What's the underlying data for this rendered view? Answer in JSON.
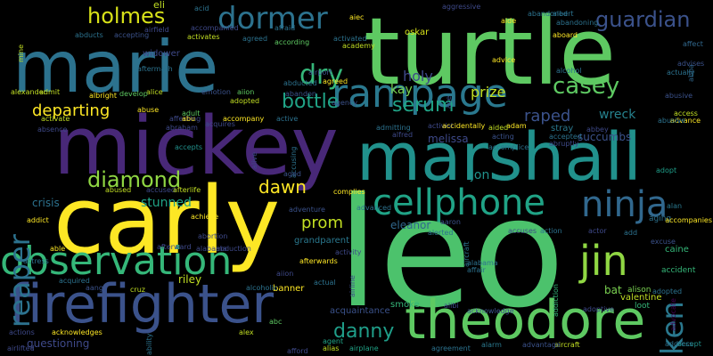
{
  "words": [
    {
      "text": "leo",
      "color": "#4cc26c"
    },
    {
      "text": "turtle",
      "color": "#5ec962"
    },
    {
      "text": "carly",
      "color": "#fde725"
    },
    {
      "text": "mickey",
      "color": "#482878"
    },
    {
      "text": "marshall",
      "color": "#21918c"
    },
    {
      "text": "marie",
      "color": "#2c728e"
    },
    {
      "text": "firefighter",
      "color": "#3b528b"
    },
    {
      "text": "theodore",
      "color": "#5ec962"
    },
    {
      "text": "observation",
      "color": "#35b779"
    },
    {
      "text": "rampage",
      "color": "#2a788e"
    },
    {
      "text": "cellphone",
      "color": "#20a386"
    },
    {
      "text": "ninja",
      "color": "#31688e"
    },
    {
      "text": "jin",
      "color": "#90d743"
    },
    {
      "text": "ken",
      "color": "#2a788e"
    },
    {
      "text": "dormer",
      "color": "#2c728e"
    },
    {
      "text": "guardian",
      "color": "#3b528b"
    },
    {
      "text": "holmes",
      "color": "#d8e219"
    },
    {
      "text": "casey",
      "color": "#5ec962"
    },
    {
      "text": "diamond",
      "color": "#90d743"
    },
    {
      "text": "dry",
      "color": "#35b779"
    },
    {
      "text": "serum",
      "color": "#20a386"
    },
    {
      "text": "reaper",
      "color": "#2c728e"
    },
    {
      "text": "bottle",
      "color": "#20a386"
    },
    {
      "text": "danny",
      "color": "#1f9e89"
    },
    {
      "text": "dawn",
      "color": "#fde725"
    },
    {
      "text": "prom",
      "color": "#c2df23"
    },
    {
      "text": "departing",
      "color": "#fde725"
    },
    {
      "text": "raped",
      "color": "#3b528b"
    },
    {
      "text": "holy",
      "color": "#3e4989"
    },
    {
      "text": "prize",
      "color": "#c2df23"
    },
    {
      "text": "kay",
      "color": "#7ad151"
    },
    {
      "text": "jon",
      "color": "#21918c"
    },
    {
      "text": "stunned",
      "color": "#20a386"
    },
    {
      "text": "questioning",
      "color": "#3e4989"
    },
    {
      "text": "crisis",
      "color": "#2c728e"
    },
    {
      "text": "oskar",
      "color": "#d8e219"
    },
    {
      "text": "wreck",
      "color": "#26828e"
    },
    {
      "text": "succumbs",
      "color": "#3b528b"
    },
    {
      "text": "eleanor",
      "color": "#31688e"
    },
    {
      "text": "melissa",
      "color": "#3e4989"
    },
    {
      "text": "eli",
      "color": "#c2df23"
    },
    {
      "text": "stray",
      "color": "#2a788e"
    },
    {
      "text": "grandparent",
      "color": "#2a788e"
    },
    {
      "text": "riley",
      "color": "#c2df23"
    },
    {
      "text": "bat",
      "color": "#7ad151"
    },
    {
      "text": "valentine",
      "color": "#c2df23"
    },
    {
      "text": "caine",
      "color": "#35b779"
    },
    {
      "text": "banner",
      "color": "#fde725"
    },
    {
      "text": "smoke",
      "color": "#35b779"
    },
    {
      "text": "acquaintance",
      "color": "#3b528b"
    },
    {
      "text": "widower",
      "color": "#3e4989"
    },
    {
      "text": "aging",
      "color": "#2c728e"
    },
    {
      "text": "accident",
      "color": "#35b779"
    },
    {
      "text": "alison",
      "color": "#7ad151"
    },
    {
      "text": "alice",
      "color": "#c2df23"
    },
    {
      "text": "loot",
      "color": "#35b779"
    },
    {
      "text": "accept",
      "color": "#21918c"
    },
    {
      "text": "complies",
      "color": "#fde725"
    },
    {
      "text": "alan",
      "color": "#2a788e"
    },
    {
      "text": "cruz",
      "color": "#c2df23"
    },
    {
      "text": "adopt",
      "color": "#1f9e89"
    },
    {
      "text": "adult",
      "color": "#5ec962"
    },
    {
      "text": "abbey",
      "color": "#3e4989"
    },
    {
      "text": "abba",
      "color": "#31688e"
    },
    {
      "text": "address",
      "color": "#2c728e"
    },
    {
      "text": "albert",
      "color": "#2c728e"
    },
    {
      "text": "agent",
      "color": "#20a386"
    },
    {
      "text": "alias",
      "color": "#c2df23"
    },
    {
      "text": "aircraft",
      "color": "#c2df23"
    },
    {
      "text": "alarm",
      "color": "#2a788e"
    },
    {
      "text": "agreement",
      "color": "#2c728e"
    },
    {
      "text": "advantage",
      "color": "#3b528b"
    },
    {
      "text": "airplane",
      "color": "#20a386"
    },
    {
      "text": "afford",
      "color": "#3e4989"
    },
    {
      "text": "alex",
      "color": "#c2df23"
    },
    {
      "text": "addiction",
      "color": "#35b779"
    },
    {
      "text": "advocate",
      "color": "#440154"
    },
    {
      "text": "adoptive",
      "color": "#3e4989"
    },
    {
      "text": "alcohol",
      "color": "#2c728e"
    },
    {
      "text": "actually",
      "color": "#2c728e"
    },
    {
      "text": "advises",
      "color": "#3b528b"
    },
    {
      "text": "affect",
      "color": "#31688e"
    },
    {
      "text": "abusive",
      "color": "#3b528b"
    },
    {
      "text": "access",
      "color": "#c2df23"
    },
    {
      "text": "advance",
      "color": "#fde725"
    },
    {
      "text": "abusive",
      "color": "#2c728e"
    },
    {
      "text": "aboard",
      "color": "#fde725"
    },
    {
      "text": "abandoning",
      "color": "#2c728e"
    },
    {
      "text": "abandoned",
      "color": "#2c728e"
    },
    {
      "text": "aggressive",
      "color": "#3e4989"
    },
    {
      "text": "aide",
      "color": "#fde725"
    },
    {
      "text": "acid",
      "color": "#2c728e"
    },
    {
      "text": "accompanied",
      "color": "#3e4989"
    },
    {
      "text": "aiec",
      "color": "#fde725"
    },
    {
      "text": "activates",
      "color": "#c2df23"
    },
    {
      "text": "agreed",
      "color": "#2c728e"
    },
    {
      "text": "afraid",
      "color": "#2c728e"
    },
    {
      "text": "activated",
      "color": "#2c728e"
    },
    {
      "text": "academy",
      "color": "#c2df23"
    },
    {
      "text": "according",
      "color": "#5ec962"
    },
    {
      "text": "airport",
      "color": "#3b528b"
    },
    {
      "text": "agreed",
      "color": "#fde725"
    },
    {
      "text": "ace",
      "color": "#3b528b"
    },
    {
      "text": "advice",
      "color": "#fde725"
    },
    {
      "text": "abducted",
      "color": "#2c728e"
    },
    {
      "text": "accepting",
      "color": "#3b528b"
    },
    {
      "text": "airfield",
      "color": "#3e4989"
    },
    {
      "text": "abducts",
      "color": "#2c728e"
    },
    {
      "text": "aftermath",
      "color": "#2c728e"
    },
    {
      "text": "admit",
      "color": "#c2df23"
    },
    {
      "text": "albright",
      "color": "#fde725"
    },
    {
      "text": "develop",
      "color": "#5ec962"
    },
    {
      "text": "alexander",
      "color": "#c2df23"
    },
    {
      "text": "mine",
      "color": "#c2df23"
    },
    {
      "text": "emotion",
      "color": "#3b528b"
    },
    {
      "text": "adopted",
      "color": "#c2df23"
    },
    {
      "text": "aiion",
      "color": "#5ec962"
    },
    {
      "text": "abandon",
      "color": "#3b528b"
    },
    {
      "text": "agency",
      "color": "#3b528b"
    },
    {
      "text": "activate",
      "color": "#c2df23"
    },
    {
      "text": "abuse",
      "color": "#fde725"
    },
    {
      "text": "affecting",
      "color": "#3e4989"
    },
    {
      "text": "abu",
      "color": "#fde725"
    },
    {
      "text": "accompany",
      "color": "#fde725"
    },
    {
      "text": "abraham",
      "color": "#3e4989"
    },
    {
      "text": "accepts",
      "color": "#21918c"
    },
    {
      "text": "acquires",
      "color": "#3e4989"
    },
    {
      "text": "active",
      "color": "#2c728e"
    },
    {
      "text": "alive",
      "color": "#3e4989"
    },
    {
      "text": "accusing",
      "color": "#2c728e"
    },
    {
      "text": "admitting",
      "color": "#2c728e"
    },
    {
      "text": "alfred",
      "color": "#3e4989"
    },
    {
      "text": "activist",
      "color": "#3e4989"
    },
    {
      "text": "accidentally",
      "color": "#fde725"
    },
    {
      "text": "adam",
      "color": "#fde725"
    },
    {
      "text": "acting",
      "color": "#3b528b"
    },
    {
      "text": "aided",
      "color": "#c2df23"
    },
    {
      "text": "accomplice",
      "color": "#2c728e"
    },
    {
      "text": "accepted",
      "color": "#2c728e"
    },
    {
      "text": "abruptly",
      "color": "#3e4989"
    },
    {
      "text": "absence",
      "color": "#3e4989"
    },
    {
      "text": "aged",
      "color": "#3b528b"
    },
    {
      "text": "abused",
      "color": "#c2df23"
    },
    {
      "text": "accused",
      "color": "#3e4989"
    },
    {
      "text": "afterlife",
      "color": "#c2df23"
    },
    {
      "text": "addict",
      "color": "#fde725"
    },
    {
      "text": "achieve",
      "color": "#fde725"
    },
    {
      "text": "abortion",
      "color": "#3e4989"
    },
    {
      "text": "adventure",
      "color": "#3b528b"
    },
    {
      "text": "advanced",
      "color": "#2c728e"
    },
    {
      "text": "afterward",
      "color": "#3e4989"
    },
    {
      "text": "alabama",
      "color": "#3e4989"
    },
    {
      "text": "abduction",
      "color": "#3e4989"
    },
    {
      "text": "actress",
      "color": "#2c728e"
    },
    {
      "text": "able",
      "color": "#fde725"
    },
    {
      "text": "acquired",
      "color": "#2c728e"
    },
    {
      "text": "aang",
      "color": "#3b528b"
    },
    {
      "text": "acknowledges",
      "color": "#fde725"
    },
    {
      "text": "afterwards",
      "color": "#fde725"
    },
    {
      "text": "actual",
      "color": "#2c728e"
    },
    {
      "text": "activity",
      "color": "#3e4989"
    },
    {
      "text": "alcoholic",
      "color": "#2c728e"
    },
    {
      "text": "aiion",
      "color": "#3e4989"
    },
    {
      "text": "abc",
      "color": "#5ec962"
    },
    {
      "text": "airline",
      "color": "#3e4989"
    },
    {
      "text": "acknowledge",
      "color": "#3b528b"
    },
    {
      "text": "alerted",
      "color": "#2c728e"
    },
    {
      "text": "action",
      "color": "#2c728e"
    },
    {
      "text": "accuses",
      "color": "#3e4989"
    },
    {
      "text": "alabama",
      "color": "#2c728e"
    },
    {
      "text": "affair",
      "color": "#2c728e"
    },
    {
      "text": "aircraft",
      "color": "#2c728e"
    },
    {
      "text": "aaron",
      "color": "#3b528b"
    },
    {
      "text": "actor",
      "color": "#3e4989"
    },
    {
      "text": "add",
      "color": "#2c728e"
    },
    {
      "text": "accompanies",
      "color": "#fde725"
    },
    {
      "text": "excuse",
      "color": "#3b528b"
    },
    {
      "text": "adopted",
      "color": "#2c728e"
    },
    {
      "text": "actions",
      "color": "#3e4989"
    },
    {
      "text": "airlifted",
      "color": "#3e4989"
    },
    {
      "text": "alibi",
      "color": "#3e4989"
    },
    {
      "text": "ability",
      "color": "#2c728e"
    }
  ]
}
